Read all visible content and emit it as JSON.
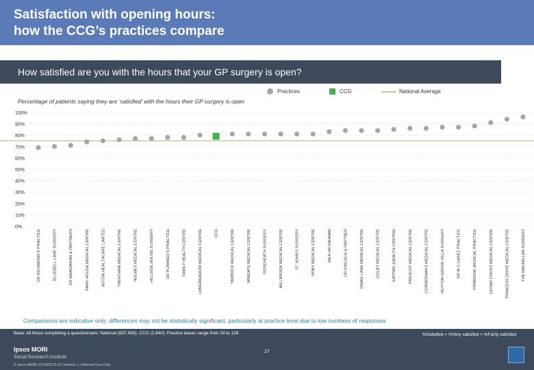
{
  "header": {
    "title_line1": "Satisfaction with opening hours:",
    "title_line2": "how the CCG’s practices compare"
  },
  "question": "How satisfied are you with the hours that your GP surgery is open?",
  "legend": {
    "practices": "Practices",
    "ccg": "CCG",
    "national": "National Average"
  },
  "caption": "Percentage of patients saying they are ‘satisfied’ with the hours their GP surgery is open",
  "chart_data": {
    "type": "scatter",
    "ylim": [
      0,
      100
    ],
    "yticks": [
      "0%",
      "10%",
      "20%",
      "30%",
      "40%",
      "50%",
      "60%",
      "70%",
      "80%",
      "90%",
      "100%"
    ],
    "categories": [
      "DR RICHMOND'S PRACTICE",
      "BLUEBELL LANE SURGERY",
      "DR MAADIARAN & PARTNERS",
      "PARK HOUSE MEDICAL CENTRE",
      "ASTON HEALTHCARE LIMITED",
      "TRENTHAM MEDICAL CENTRE",
      "HOLMES MEDICAL CENTRE",
      "HILLSIDE HOUSE SURGERY",
      "DR PLANNED'S PRACTICE",
      "FAMILY HEALTH CENTRE",
      "LONGMEADOW MEDICAL CENTRE",
      "CCG",
      "TARBOCK MEDICAL CENTRE",
      "WINGATE MEDICAL CENTRE",
      "ROSEHEATH SURGERY",
      "MILLBROOK MEDICAL CENTRE",
      "ST JOHN'S SURGERY",
      "ROBY MEDICAL CENTRE",
      "MKA HR RAHMAN",
      "DR KINLOCH & PARTNER",
      "DINAS LANE MEDICAL CENTRE",
      "COLBY MEDICAL CENTRE",
      "EATPMC (HEALTH CENTRE)",
      "PRESCOT MEDICAL CENTRE",
      "CORNERWAYS MEDICAL CENTRE",
      "HUYTON GROVE VILLA SURGERY",
      "DR M S UAREZ PRACTICE",
      "PRIMROSE MEDICAL PRACTICE",
      "CEDAR CROSS MEDICAL CENTRE",
      "PRINCESS DRIVE MEDICAL CENTRE",
      "THE MACMILLAN SURGERY"
    ],
    "values": [
      69,
      70,
      71,
      74,
      75,
      76,
      77,
      77,
      78,
      78,
      80,
      79,
      81,
      81,
      81,
      81,
      81,
      81,
      83,
      84,
      84,
      84,
      85,
      86,
      86,
      87,
      87,
      88,
      91,
      94,
      96
    ],
    "ccg_index": 11,
    "national_average": 75,
    "colors": {
      "practice": "#a6a6a6",
      "ccg": "#3cb44b",
      "national": "#c9c98a",
      "grid": "#d9d9d9"
    }
  },
  "comparisons_note": "Comparisons are indicative only: differences may not be statistically significant, particularly at practice level due to low numbers of responses",
  "footer": {
    "base": "Base: All those completing a questionnaire: National (837,693); CCG (2,940); Practice bases range from 29 to 126",
    "definition": "%Satisfied = %Very satisfied + %Fairly satisfied",
    "page_number": "17",
    "logo": "Ipsos MORI",
    "org": "Social Research Institute",
    "copyright": "© Ipsos MORI     15-032172-01 Version 1 | Internal Use Only"
  }
}
